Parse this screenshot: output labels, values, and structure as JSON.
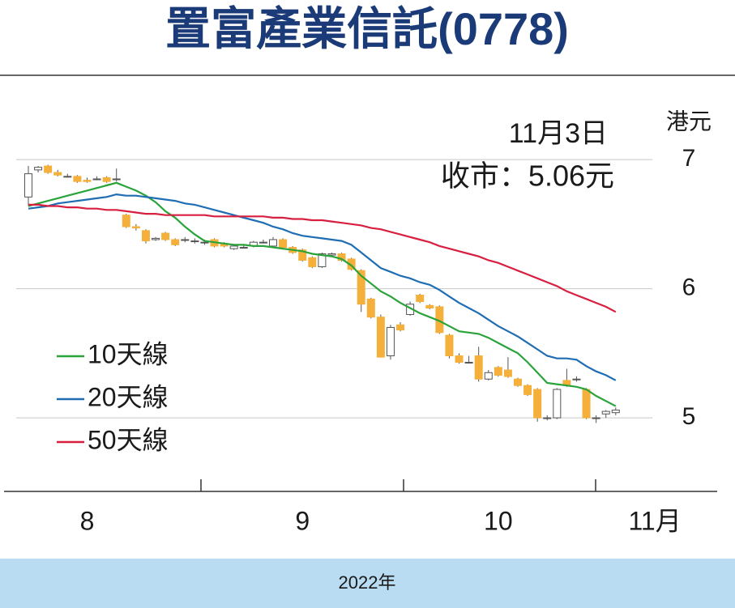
{
  "chart_data": {
    "type": "candlestick",
    "title": "置富產業信託(0778)",
    "annotations": [
      "11月3日",
      "收市：5.06元"
    ],
    "y_unit": "港元",
    "footer": "2022年",
    "ylim": [
      4.43,
      7.64
    ],
    "yticks": [
      5,
      6,
      7
    ],
    "grid": true,
    "legend": "left",
    "up_color": "#ffffff",
    "down_color": "#f4b03a",
    "categories": [
      null,
      null,
      null,
      null,
      null,
      null,
      "8",
      null,
      null,
      null,
      null,
      null,
      null,
      null,
      null,
      null,
      null,
      null,
      null,
      null,
      null,
      null,
      null,
      null,
      null,
      null,
      null,
      null,
      "9",
      null,
      null,
      null,
      null,
      null,
      null,
      null,
      null,
      null,
      null,
      null,
      null,
      null,
      null,
      null,
      null,
      null,
      null,
      null,
      "10",
      null,
      null,
      null,
      null,
      null,
      null,
      null,
      null,
      null,
      null,
      null,
      null,
      null,
      null,
      null,
      "11月"
    ],
    "open": [
      6.71,
      6.92,
      6.95,
      6.9,
      6.87,
      6.87,
      6.84,
      6.85,
      6.86,
      6.85,
      6.57,
      6.48,
      6.45,
      6.38,
      6.43,
      6.38,
      6.38,
      6.37,
      6.36,
      6.38,
      6.35,
      6.31,
      6.32,
      6.33,
      6.36,
      6.33,
      6.38,
      6.32,
      6.3,
      6.24,
      6.17,
      6.26,
      6.27,
      6.23,
      6.14,
      5.92,
      5.78,
      5.48,
      5.72,
      5.8,
      5.95,
      5.87,
      5.86,
      5.64,
      5.48,
      5.43,
      5.48,
      5.3,
      5.39,
      5.37,
      5.3,
      5.25,
      5.22,
      5.0,
      5.0,
      5.29,
      5.3,
      5.22,
      5.0,
      5.03,
      5.04,
      null,
      null,
      null,
      null
    ],
    "high": [
      6.95,
      6.95,
      6.96,
      6.92,
      6.89,
      6.88,
      6.86,
      6.87,
      6.87,
      6.93,
      6.58,
      6.5,
      6.46,
      6.4,
      6.44,
      6.39,
      6.4,
      6.39,
      6.38,
      6.39,
      6.36,
      6.34,
      6.34,
      6.37,
      6.38,
      6.4,
      6.39,
      6.33,
      6.31,
      6.25,
      6.28,
      6.28,
      6.28,
      6.24,
      6.15,
      5.93,
      5.8,
      5.72,
      5.74,
      5.9,
      5.96,
      5.88,
      5.87,
      5.65,
      5.5,
      5.48,
      5.55,
      5.37,
      5.4,
      5.47,
      5.31,
      5.26,
      5.23,
      5.02,
      5.23,
      5.38,
      5.32,
      5.23,
      5.02,
      5.06,
      5.08,
      null,
      null,
      null,
      null
    ],
    "low": [
      6.64,
      6.9,
      6.89,
      6.87,
      6.86,
      6.82,
      6.82,
      6.84,
      6.82,
      6.83,
      6.47,
      6.45,
      6.35,
      6.37,
      6.37,
      6.33,
      6.36,
      6.35,
      6.34,
      6.32,
      6.32,
      6.3,
      6.31,
      6.32,
      6.35,
      6.32,
      6.31,
      6.27,
      6.21,
      6.16,
      6.16,
      6.25,
      6.21,
      6.14,
      5.82,
      5.77,
      5.47,
      5.45,
      5.67,
      5.79,
      5.89,
      5.84,
      5.65,
      5.46,
      5.42,
      5.42,
      5.28,
      5.29,
      5.32,
      5.31,
      5.24,
      5.17,
      4.97,
      4.98,
      4.99,
      5.24,
      5.28,
      4.99,
      4.96,
      5.0,
      5.02,
      null,
      null,
      null,
      null
    ],
    "close": [
      6.89,
      6.94,
      6.9,
      6.88,
      6.87,
      6.83,
      6.83,
      6.85,
      6.83,
      6.85,
      6.48,
      6.47,
      6.37,
      6.39,
      6.38,
      6.34,
      6.38,
      6.37,
      6.36,
      6.33,
      6.33,
      6.33,
      6.32,
      6.36,
      6.36,
      6.38,
      6.32,
      6.28,
      6.22,
      6.17,
      6.27,
      6.27,
      6.22,
      6.15,
      5.88,
      5.78,
      5.47,
      5.7,
      5.68,
      5.88,
      5.9,
      5.85,
      5.66,
      5.48,
      5.43,
      5.43,
      5.3,
      5.35,
      5.33,
      5.32,
      5.25,
      5.18,
      5.0,
      5.0,
      5.22,
      5.25,
      5.3,
      5.0,
      5.0,
      5.05,
      5.06,
      null,
      null,
      null,
      null
    ],
    "series": [
      {
        "name": "10天線",
        "color": "#2aa33a",
        "values": [
          6.64,
          6.66,
          6.68,
          6.7,
          6.72,
          6.74,
          6.76,
          6.78,
          6.8,
          6.82,
          6.79,
          6.76,
          6.72,
          6.67,
          6.6,
          6.55,
          6.48,
          6.42,
          6.37,
          6.36,
          6.35,
          6.34,
          6.34,
          6.33,
          6.33,
          6.32,
          6.31,
          6.3,
          6.29,
          6.27,
          6.26,
          6.25,
          6.23,
          6.18,
          6.1,
          6.04,
          5.98,
          5.94,
          5.89,
          5.85,
          5.81,
          5.78,
          5.75,
          5.71,
          5.67,
          5.66,
          5.65,
          5.62,
          5.58,
          5.54,
          5.5,
          5.43,
          5.35,
          5.27,
          5.26,
          5.25,
          5.24,
          5.22,
          5.17,
          5.13,
          5.09,
          null,
          null,
          null,
          null
        ]
      },
      {
        "name": "20天線",
        "color": "#1f6db3",
        "values": [
          6.62,
          6.63,
          6.64,
          6.66,
          6.67,
          6.68,
          6.69,
          6.7,
          6.71,
          6.73,
          6.72,
          6.72,
          6.71,
          6.7,
          6.69,
          6.68,
          6.66,
          6.65,
          6.63,
          6.61,
          6.59,
          6.57,
          6.55,
          6.53,
          6.51,
          6.48,
          6.46,
          6.43,
          6.41,
          6.4,
          6.39,
          6.38,
          6.37,
          6.34,
          6.28,
          6.22,
          6.16,
          6.13,
          6.1,
          6.08,
          6.05,
          6.03,
          5.99,
          5.94,
          5.89,
          5.85,
          5.81,
          5.76,
          5.71,
          5.67,
          5.63,
          5.58,
          5.53,
          5.48,
          5.46,
          5.46,
          5.45,
          5.4,
          5.36,
          5.33,
          5.29,
          null,
          null,
          null,
          null
        ]
      },
      {
        "name": "50天線",
        "color": "#d81f3f",
        "values": [
          6.65,
          6.65,
          6.64,
          6.64,
          6.63,
          6.63,
          6.62,
          6.62,
          6.61,
          6.61,
          6.6,
          6.59,
          6.58,
          6.58,
          6.57,
          6.57,
          6.57,
          6.57,
          6.57,
          6.56,
          6.56,
          6.56,
          6.56,
          6.56,
          6.56,
          6.55,
          6.55,
          6.54,
          6.54,
          6.53,
          6.53,
          6.52,
          6.51,
          6.5,
          6.49,
          6.47,
          6.46,
          6.44,
          6.42,
          6.4,
          6.38,
          6.36,
          6.33,
          6.31,
          6.29,
          6.27,
          6.25,
          6.22,
          6.2,
          6.17,
          6.14,
          6.11,
          6.08,
          6.05,
          6.02,
          5.98,
          5.95,
          5.92,
          5.89,
          5.86,
          5.82,
          null,
          null,
          null,
          null
        ]
      }
    ]
  }
}
